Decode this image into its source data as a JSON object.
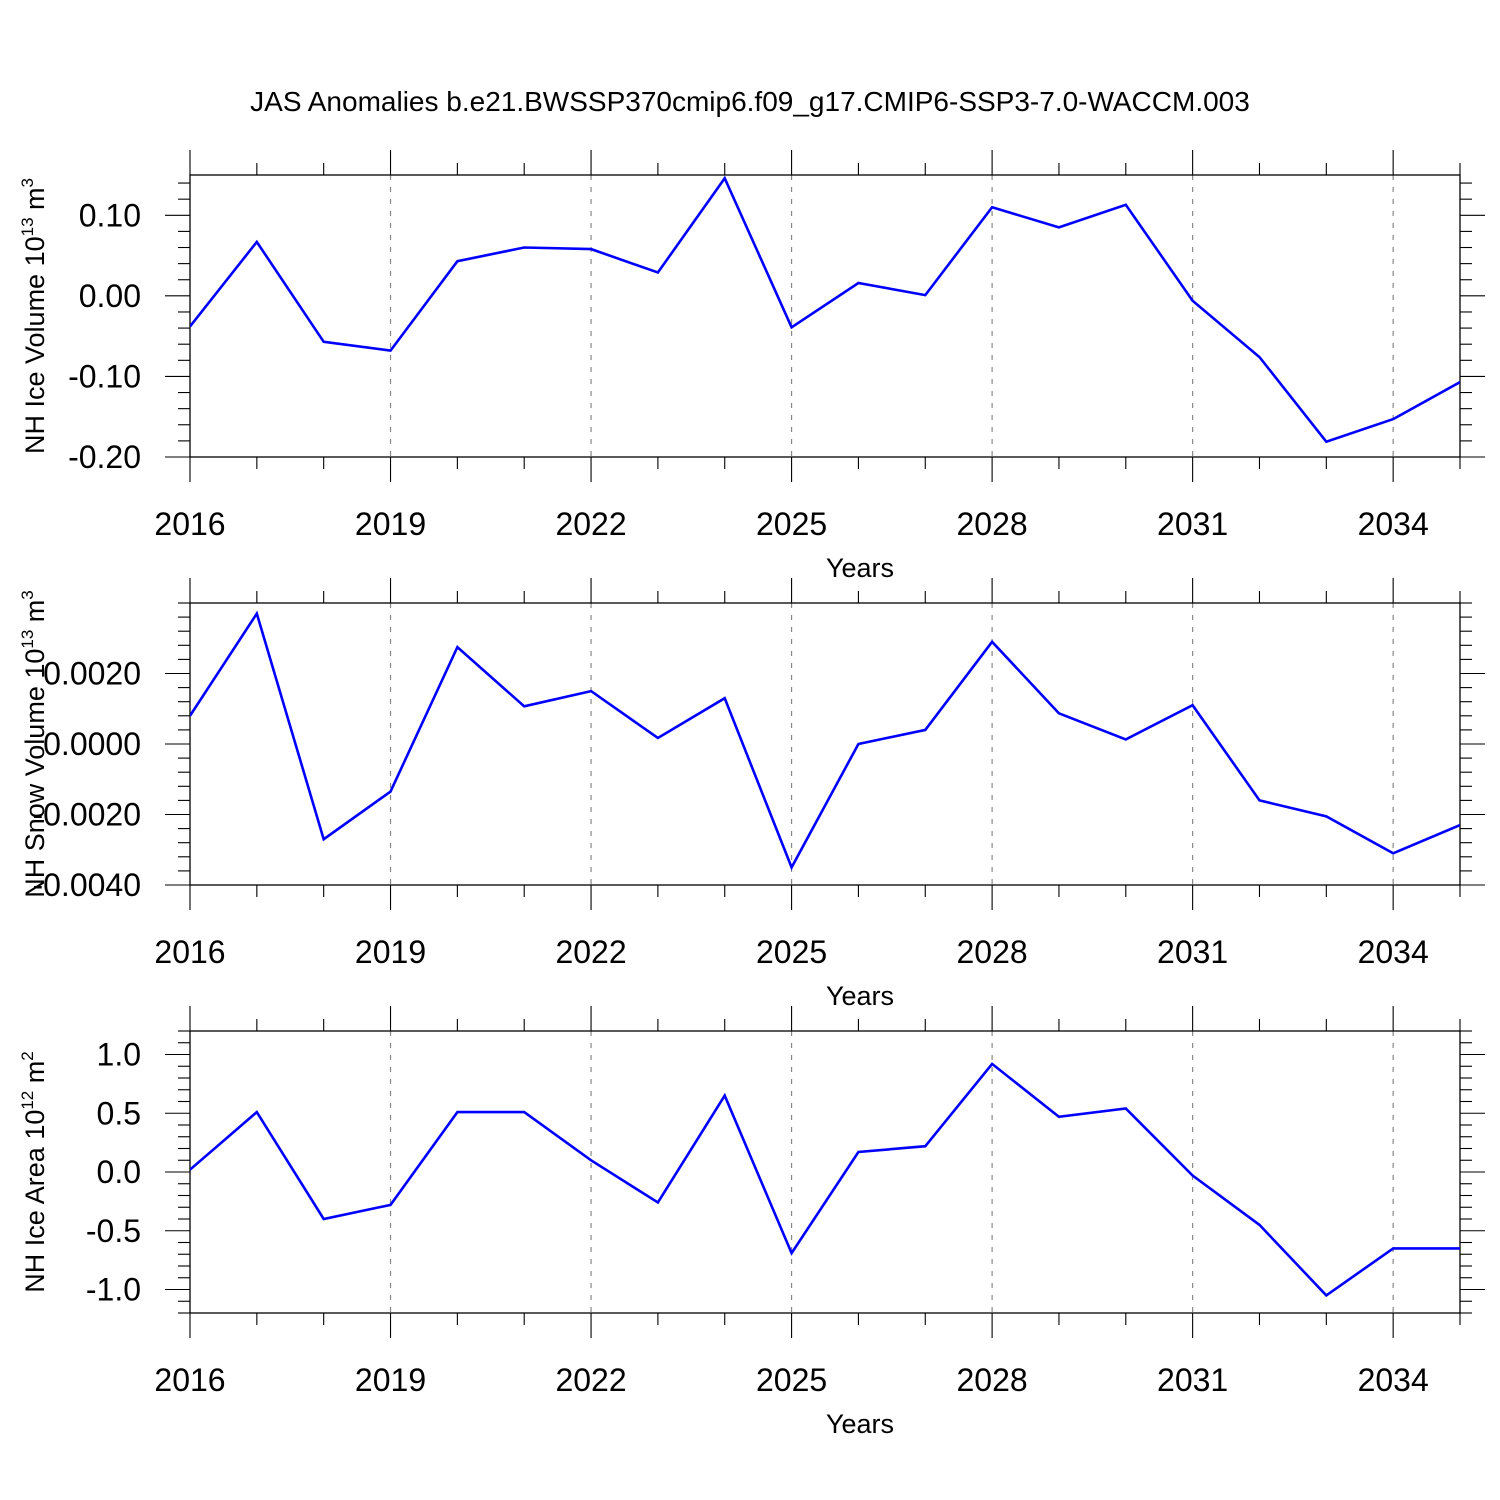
{
  "title": "JAS Anomalies b.e21.BWSSP370cmip6.f09_g17.CMIP6-SSP3-7.0-WACCM.003",
  "colors": {
    "series": "#0000ff",
    "grid": "#888888",
    "frame": "#000000"
  },
  "chart_data": [
    {
      "type": "line",
      "title": "JAS Anomalies b.e21.BWSSP370cmip6.f09_g17.CMIP6-SSP3-7.0-WACCM.003",
      "xlabel": "Years",
      "ylabel": "NH Ice Volume 10",
      "ylabel_sup": "13",
      "ylabel_unit": " m",
      "ylabel_unit_sup": "3",
      "xlim": [
        2016,
        2035
      ],
      "ylim": [
        -0.2,
        0.15
      ],
      "x_ticks": [
        2016,
        2019,
        2022,
        2025,
        2028,
        2031,
        2034
      ],
      "x_tick_labels": [
        "2016",
        "2019",
        "2022",
        "2025",
        "2028",
        "2031",
        "2034"
      ],
      "y_ticks": [
        -0.2,
        -0.1,
        0.0,
        0.1
      ],
      "y_tick_labels": [
        "-0.20",
        "-0.10",
        "0.00",
        "0.10"
      ],
      "grid": "vertical dashed at major x ticks",
      "series": [
        {
          "x": [
            2016,
            2017,
            2018,
            2019,
            2020,
            2021,
            2022,
            2023,
            2024,
            2025,
            2026,
            2027,
            2028,
            2029,
            2030,
            2031,
            2032,
            2033,
            2034,
            2035
          ],
          "values": [
            -0.038,
            0.067,
            -0.057,
            -0.068,
            0.043,
            0.06,
            0.058,
            0.029,
            0.146,
            -0.039,
            0.016,
            0.001,
            0.11,
            0.085,
            0.113,
            -0.006,
            -0.076,
            -0.181,
            -0.153,
            -0.107
          ]
        }
      ]
    },
    {
      "type": "line",
      "xlabel": "Years",
      "ylabel": "NH Snow Volume 10",
      "ylabel_sup": "13",
      "ylabel_unit": " m",
      "ylabel_unit_sup": "3",
      "xlim": [
        2016,
        2035
      ],
      "ylim": [
        -0.004,
        0.004
      ],
      "x_ticks": [
        2016,
        2019,
        2022,
        2025,
        2028,
        2031,
        2034
      ],
      "x_tick_labels": [
        "2016",
        "2019",
        "2022",
        "2025",
        "2028",
        "2031",
        "2034"
      ],
      "y_ticks": [
        -0.004,
        -0.002,
        0.0,
        0.002
      ],
      "y_tick_labels": [
        "-0.0040",
        "-0.0020",
        "0.0000",
        "0.0020"
      ],
      "grid": "vertical dashed at major x ticks",
      "series": [
        {
          "x": [
            2016,
            2017,
            2018,
            2019,
            2020,
            2021,
            2022,
            2023,
            2024,
            2025,
            2026,
            2027,
            2028,
            2029,
            2030,
            2031,
            2032,
            2033,
            2034,
            2035
          ],
          "values": [
            0.0008,
            0.0037,
            -0.0027,
            -0.00135,
            0.00275,
            0.00107,
            0.0015,
            0.00017,
            0.0013,
            -0.0035,
            0.0,
            0.0004,
            0.0029,
            0.00087,
            0.00013,
            0.0011,
            -0.0016,
            -0.00205,
            -0.0031,
            -0.0023
          ]
        }
      ]
    },
    {
      "type": "line",
      "xlabel": "Years",
      "ylabel": "NH Ice Area 10",
      "ylabel_sup": "12",
      "ylabel_unit": " m",
      "ylabel_unit_sup": "2",
      "xlim": [
        2016,
        2035
      ],
      "ylim": [
        -1.2,
        1.2
      ],
      "x_ticks": [
        2016,
        2019,
        2022,
        2025,
        2028,
        2031,
        2034
      ],
      "x_tick_labels": [
        "2016",
        "2019",
        "2022",
        "2025",
        "2028",
        "2031",
        "2034"
      ],
      "y_ticks": [
        -1.0,
        -0.5,
        0.0,
        0.5,
        1.0
      ],
      "y_tick_labels": [
        "-1.0",
        "-0.5",
        "0.0",
        "0.5",
        "1.0"
      ],
      "grid": "vertical dashed at major x ticks",
      "series": [
        {
          "x": [
            2016,
            2017,
            2018,
            2019,
            2020,
            2021,
            2022,
            2023,
            2024,
            2025,
            2026,
            2027,
            2028,
            2029,
            2030,
            2031,
            2032,
            2033,
            2034,
            2035
          ],
          "values": [
            0.02,
            0.51,
            -0.4,
            -0.28,
            0.51,
            0.51,
            0.1,
            -0.26,
            0.65,
            -0.69,
            0.17,
            0.22,
            0.92,
            0.47,
            0.54,
            -0.03,
            -0.45,
            -1.05,
            -0.65,
            -0.65
          ]
        }
      ]
    }
  ]
}
